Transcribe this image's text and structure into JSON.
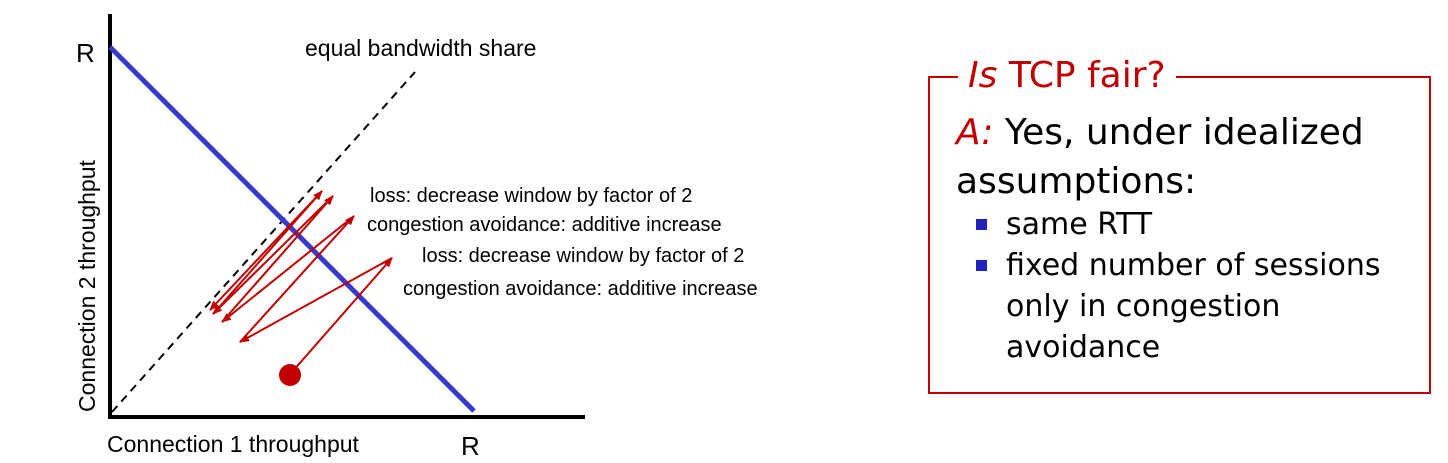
{
  "diagram": {
    "y_axis_label": "Connection 2 throughput",
    "x_axis_label": "Connection 1 throughput",
    "y_max_label": "R",
    "x_max_label": "R",
    "diagonal_label": "equal bandwidth share",
    "annotations": [
      "loss: decrease window by factor of 2",
      "congestion avoidance: additive increase",
      "loss: decrease window by factor of 2",
      "congestion avoidance: additive increase"
    ],
    "colors": {
      "capacity_line": "#3a3ac8",
      "trajectory": "#c00000",
      "axes": "#000000"
    }
  },
  "panel": {
    "title_em": "Is",
    "title_rest": " TCP fair?",
    "answer_prefix": "A:",
    "answer_text": " Yes, under idealized assumptions:",
    "bullets": [
      "same RTT",
      "fixed number of sessions only in congestion avoidance"
    ],
    "colors": {
      "accent": "#c00000",
      "bullet": "#2222bb"
    }
  }
}
